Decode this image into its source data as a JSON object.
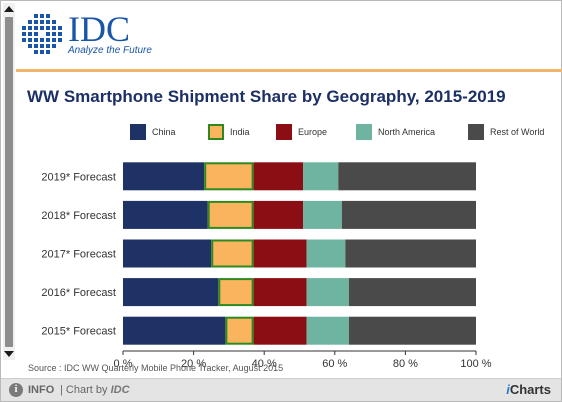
{
  "logo": {
    "wordmark": "IDC",
    "tagline": "Analyze the Future"
  },
  "source": "Source : IDC WW Quarterly Mobile Phone Tracker, August 2015",
  "footer": {
    "info": "INFO",
    "chart_by_prefix": "| Chart by",
    "chart_by_brand": "IDC",
    "brand": "iCharts"
  },
  "colors": {
    "China": "#1e3266",
    "India": "#fbb45e",
    "India_border": "#2e8a1e",
    "Europe": "#8b0e14",
    "North America": "#6fb4a0",
    "Rest of World": "#4a4a4a"
  },
  "chart_data": {
    "type": "bar",
    "orientation": "horizontal",
    "stacked": true,
    "title": "WW Smartphone Shipment Share by Geography, 2015-2019",
    "categories": [
      "2019* Forecast",
      "2018* Forecast",
      "2017* Forecast",
      "2016* Forecast",
      "2015* Forecast"
    ],
    "series": [
      {
        "name": "China",
        "values": [
          23,
          24,
          25,
          27,
          29
        ]
      },
      {
        "name": "India",
        "values": [
          14,
          13,
          12,
          10,
          8
        ]
      },
      {
        "name": "Europe",
        "values": [
          14,
          14,
          15,
          15,
          15
        ]
      },
      {
        "name": "North America",
        "values": [
          10,
          11,
          11,
          12,
          12
        ]
      },
      {
        "name": "Rest of World",
        "values": [
          39,
          38,
          37,
          36,
          36
        ]
      }
    ],
    "xlim": [
      0,
      100
    ],
    "x_ticks": [
      "0 %",
      "20 %",
      "40 %",
      "60 %",
      "80 %",
      "100 %"
    ],
    "xlabel": "",
    "ylabel": "",
    "grid": false,
    "legend_position": "top"
  }
}
